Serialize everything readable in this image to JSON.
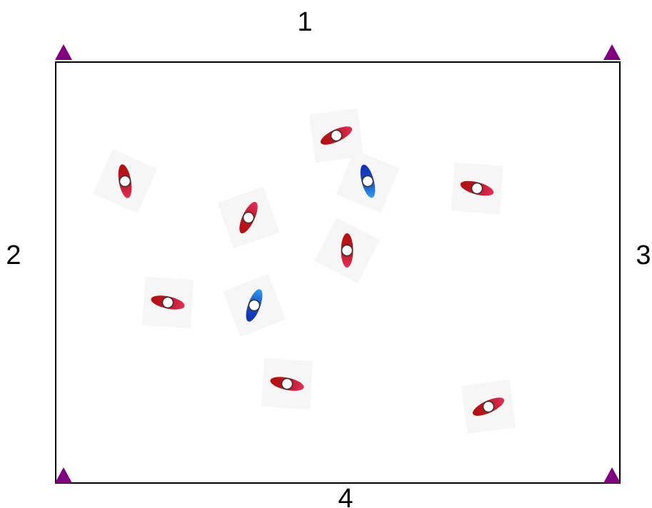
{
  "side_labels": {
    "top": "1",
    "left": "2",
    "right": "3",
    "bottom": "4"
  },
  "colors": {
    "field_border": "#000000",
    "corner_marker": "#800080",
    "red_marker_dark": "#b01010",
    "red_marker_light": "#e0305a",
    "blue_marker_dark": "#1030b0",
    "blue_marker_light": "#30a0e8",
    "marker_center": "#ffffff"
  },
  "corner_markers": [
    {
      "shape": "triangle",
      "corner": "top-left"
    },
    {
      "shape": "triangle",
      "corner": "top-right"
    },
    {
      "shape": "triangle",
      "corner": "bottom-left"
    },
    {
      "shape": "triangle",
      "corner": "bottom-right"
    }
  ],
  "markers": [
    {
      "color": "red",
      "orientation": "diagonal"
    },
    {
      "color": "red",
      "orientation": "vertical"
    },
    {
      "color": "blue",
      "orientation": "vertical"
    },
    {
      "color": "red",
      "orientation": "horizontal"
    },
    {
      "color": "red",
      "orientation": "diagonal"
    },
    {
      "color": "red",
      "orientation": "vertical"
    },
    {
      "color": "red",
      "orientation": "horizontal"
    },
    {
      "color": "blue",
      "orientation": "diagonal"
    },
    {
      "color": "red",
      "orientation": "horizontal"
    },
    {
      "color": "red",
      "orientation": "diagonal"
    }
  ]
}
